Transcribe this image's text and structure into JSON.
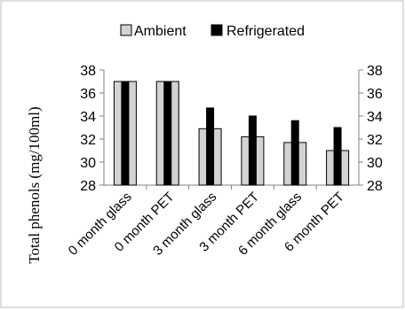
{
  "chart_data": {
    "type": "bar",
    "categories": [
      "0 month glass",
      "0 month PET",
      "3 month glass",
      "3 month PET",
      "6 month glass",
      "6 month PET"
    ],
    "series": [
      {
        "name": "Ambient",
        "values": [
          37.0,
          37.0,
          32.9,
          32.2,
          31.7,
          31.0
        ],
        "color": "#d3d3d3"
      },
      {
        "name": "Refrigerated",
        "values": [
          37.0,
          37.0,
          34.7,
          34.0,
          33.6,
          33.0
        ],
        "color": "#000000"
      }
    ],
    "title": "",
    "xlabel": "",
    "ylabel": "Total phenols  (mg/100ml)",
    "ylim": [
      28,
      38
    ],
    "yticks": [
      28,
      30,
      32,
      34,
      36,
      38
    ],
    "secondary_y_axis": true,
    "legend_position": "top",
    "grid": false
  }
}
